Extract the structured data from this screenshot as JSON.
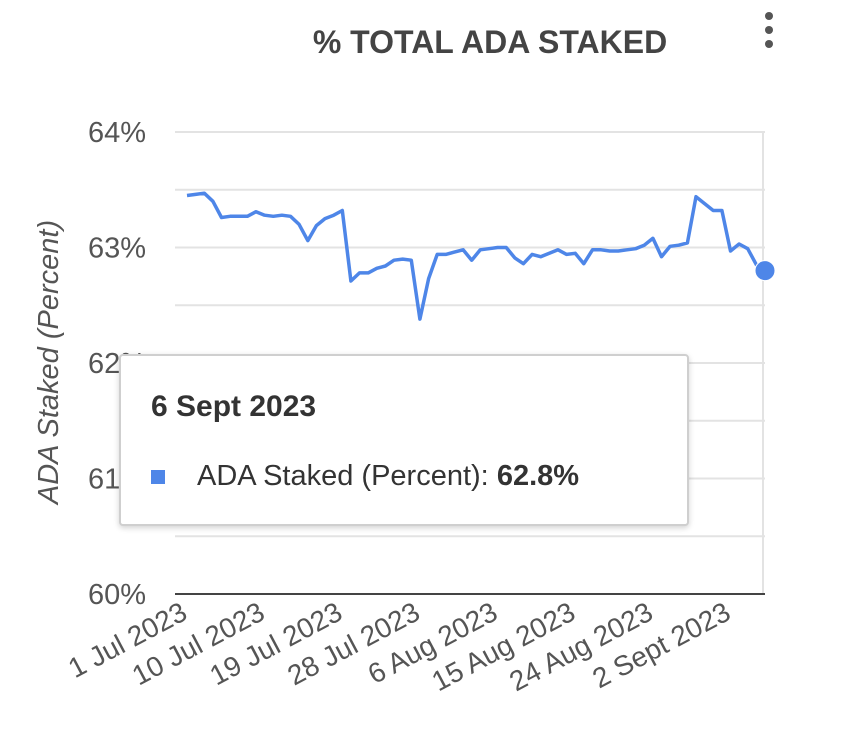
{
  "title": "% TOTAL ADA STAKED",
  "menu_icon": "more-vert-icon",
  "colors": {
    "series": "#4e86e8",
    "grid": "#e3e3e3",
    "axis": "#444444",
    "text": "#555555"
  },
  "tooltip": {
    "date": "6 Sept 2023",
    "series_label": "ADA Staked (Percent): ",
    "value": "62.8%"
  },
  "chart_data": {
    "type": "line",
    "ylabel": "ADA Staked (Percent)",
    "xlabel": "",
    "ylim": [
      60,
      64
    ],
    "yticks": [
      "60%",
      "61%",
      "62%",
      "63%",
      "64%"
    ],
    "xticks": [
      "1 Jul 2023",
      "10 Jul 2023",
      "19 Jul 2023",
      "28 Jul 2023",
      "6 Aug 2023",
      "15 Aug 2023",
      "24 Aug 2023",
      "2 Sept 2023"
    ],
    "grid": true,
    "legend": "none",
    "highlighted_point": {
      "x": "6 Sept 2023",
      "y": 62.8
    },
    "series": [
      {
        "name": "ADA Staked (Percent)",
        "x": [
          "1 Jul 2023",
          "2 Jul 2023",
          "3 Jul 2023",
          "4 Jul 2023",
          "5 Jul 2023",
          "6 Jul 2023",
          "7 Jul 2023",
          "8 Jul 2023",
          "9 Jul 2023",
          "10 Jul 2023",
          "11 Jul 2023",
          "12 Jul 2023",
          "13 Jul 2023",
          "14 Jul 2023",
          "15 Jul 2023",
          "16 Jul 2023",
          "17 Jul 2023",
          "18 Jul 2023",
          "19 Jul 2023",
          "20 Jul 2023",
          "21 Jul 2023",
          "22 Jul 2023",
          "23 Jul 2023",
          "24 Jul 2023",
          "25 Jul 2023",
          "26 Jul 2023",
          "27 Jul 2023",
          "28 Jul 2023",
          "29 Jul 2023",
          "30 Jul 2023",
          "31 Jul 2023",
          "1 Aug 2023",
          "2 Aug 2023",
          "3 Aug 2023",
          "4 Aug 2023",
          "5 Aug 2023",
          "6 Aug 2023",
          "7 Aug 2023",
          "8 Aug 2023",
          "9 Aug 2023",
          "10 Aug 2023",
          "11 Aug 2023",
          "12 Aug 2023",
          "13 Aug 2023",
          "14 Aug 2023",
          "15 Aug 2023",
          "16 Aug 2023",
          "17 Aug 2023",
          "18 Aug 2023",
          "19 Aug 2023",
          "20 Aug 2023",
          "21 Aug 2023",
          "22 Aug 2023",
          "23 Aug 2023",
          "24 Aug 2023",
          "25 Aug 2023",
          "26 Aug 2023",
          "27 Aug 2023",
          "28 Aug 2023",
          "29 Aug 2023",
          "30 Aug 2023",
          "31 Aug 2023",
          "1 Sept 2023",
          "2 Sept 2023",
          "3 Sept 2023",
          "4 Sept 2023",
          "5 Sept 2023",
          "6 Sept 2023"
        ],
        "y": [
          63.45,
          63.46,
          63.47,
          63.4,
          63.26,
          63.27,
          63.27,
          63.27,
          63.31,
          63.28,
          63.27,
          63.28,
          63.27,
          63.2,
          63.06,
          63.19,
          63.25,
          63.28,
          63.32,
          62.71,
          62.78,
          62.78,
          62.82,
          62.84,
          62.89,
          62.9,
          62.89,
          62.38,
          62.73,
          62.94,
          62.94,
          62.96,
          62.98,
          62.89,
          62.98,
          62.99,
          63.0,
          63.0,
          62.91,
          62.86,
          62.94,
          62.92,
          62.95,
          62.98,
          62.94,
          62.95,
          62.86,
          62.98,
          62.98,
          62.97,
          62.97,
          62.98,
          62.99,
          63.02,
          63.08,
          62.92,
          63.01,
          63.02,
          63.04,
          63.44,
          63.38,
          63.32,
          63.32,
          62.97,
          63.03,
          62.99,
          62.85,
          62.8
        ]
      }
    ]
  }
}
